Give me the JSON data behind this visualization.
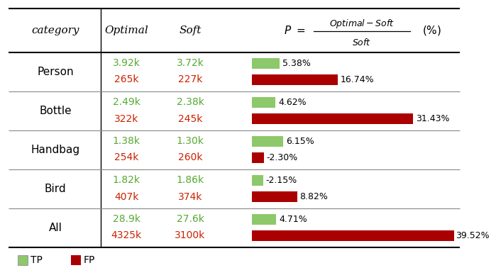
{
  "categories": [
    "Person",
    "Bottle",
    "Handbag",
    "Bird",
    "All"
  ],
  "optimal_tp": [
    "3.92k",
    "2.49k",
    "1.38k",
    "1.82k",
    "28.9k"
  ],
  "soft_tp": [
    "3.72k",
    "2.38k",
    "1.30k",
    "1.86k",
    "27.6k"
  ],
  "optimal_fp": [
    "265k",
    "322k",
    "254k",
    "407k",
    "4325k"
  ],
  "soft_fp": [
    "227k",
    "245k",
    "260k",
    "374k",
    "3100k"
  ],
  "tp_pct": [
    5.38,
    4.62,
    6.15,
    -2.15,
    4.71
  ],
  "fp_pct": [
    16.74,
    31.43,
    -2.3,
    8.82,
    39.52
  ],
  "tp_color": "#8DC86A",
  "fp_color": "#AA0000",
  "green_text": "#55AA33",
  "red_text": "#CC2200",
  "bar_max": 39.52,
  "fig_width": 6.4,
  "fig_height": 3.75
}
